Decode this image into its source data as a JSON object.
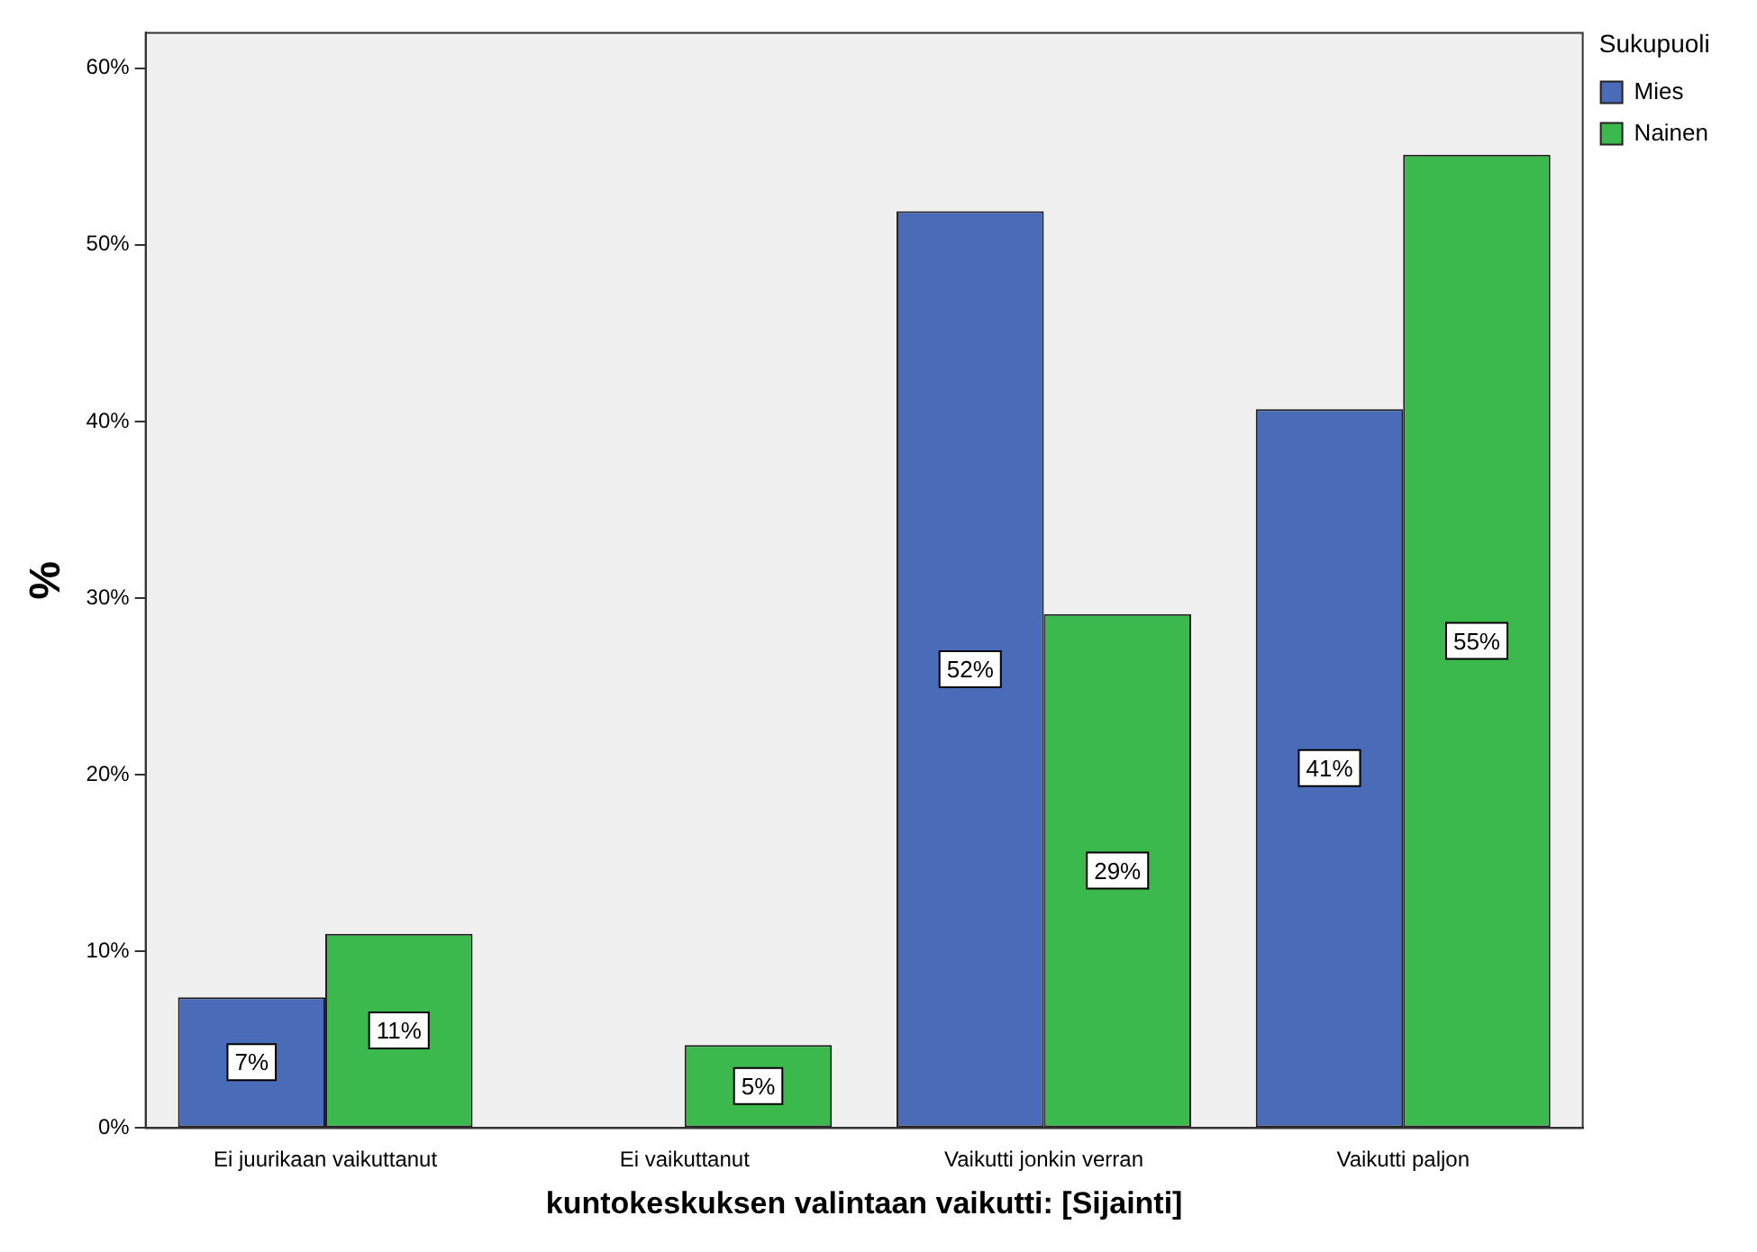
{
  "chart_data": {
    "type": "bar",
    "xlabel": "kuntokeskuksen valintaan vaikutti: [Sijainti]",
    "ylabel": "%",
    "legend_title": "Sukupuoli",
    "categories": [
      "Ei juurikaan vaikuttanut",
      "Ei vaikuttanut",
      "Vaikutti jonkin verran",
      "Vaikutti paljon"
    ],
    "series": [
      {
        "name": "Mies",
        "color": "#4a6bb8",
        "values": [
          7.4,
          0,
          51.9,
          40.7
        ],
        "value_labels": [
          "7%",
          null,
          "52%",
          "41%"
        ]
      },
      {
        "name": "Nainen",
        "color": "#3cb94d",
        "values": [
          11,
          4.7,
          29.1,
          55.1
        ],
        "value_labels": [
          "11%",
          "5%",
          "29%",
          "55%"
        ]
      }
    ],
    "ylim": [
      0,
      62
    ],
    "yticks": [
      {
        "value": 0,
        "label": "0%"
      },
      {
        "value": 10,
        "label": "10%"
      },
      {
        "value": 20,
        "label": "20%"
      },
      {
        "value": 30,
        "label": "30%"
      },
      {
        "value": 40,
        "label": "40%"
      },
      {
        "value": 50,
        "label": "50%"
      },
      {
        "value": 60,
        "label": "60%"
      }
    ],
    "grid": false,
    "legend": "top right"
  }
}
